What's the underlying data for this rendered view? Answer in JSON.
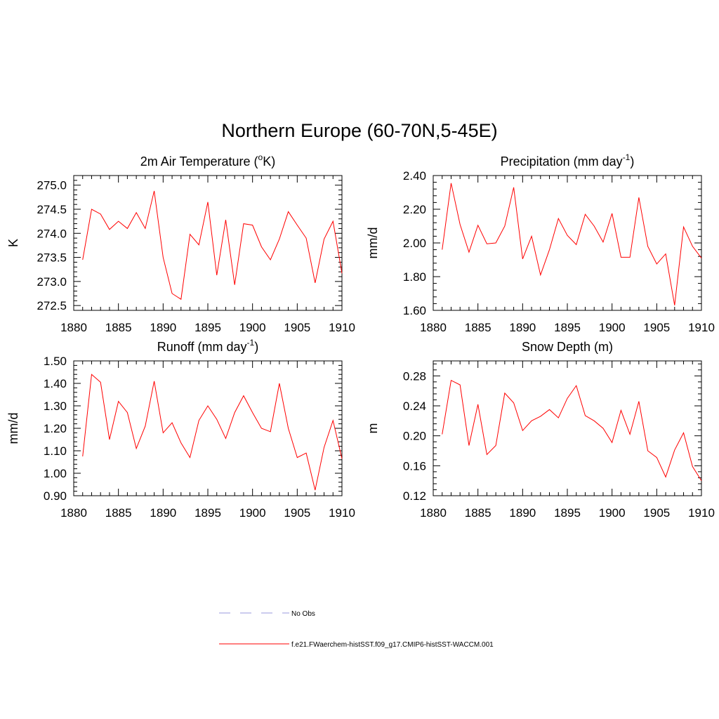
{
  "figure_title": "Northern Europe (60-70N,5-45E)",
  "legend": [
    {
      "label": "No Obs",
      "color": "#9999dd",
      "style": "dashed"
    },
    {
      "label": "f.e21.FWaerchem-histSST.f09_g17.CMIP6-histSST-WACCM.001",
      "color": "#ff0000",
      "style": "solid"
    }
  ],
  "chart_data": [
    {
      "type": "line",
      "title": "2m Air Temperature (",
      "title_sup": "o",
      "title_after": "K)",
      "xlabel": "",
      "ylabel": "K",
      "xlim": [
        1880,
        1910
      ],
      "ylim": [
        272.4,
        275.2
      ],
      "xticks": [
        1880,
        1885,
        1890,
        1895,
        1900,
        1905,
        1910
      ],
      "xtick_labels": [
        "1880",
        "1885",
        "1890",
        "1895",
        "1900",
        "1905",
        "1910"
      ],
      "yticks": [
        272.5,
        273.0,
        273.5,
        274.0,
        274.5,
        275.0
      ],
      "ytick_labels": [
        "272.5",
        "273.0",
        "273.5",
        "274.0",
        "274.5",
        "275.0"
      ],
      "grid": false,
      "series": [
        {
          "name": "f.e21.FWaerchem-histSST.f09_g17.CMIP6-histSST-WACCM.001",
          "color": "#ff0000",
          "x": [
            1881,
            1882,
            1883,
            1884,
            1885,
            1886,
            1887,
            1888,
            1889,
            1890,
            1891,
            1892,
            1893,
            1894,
            1895,
            1896,
            1897,
            1898,
            1899,
            1900,
            1901,
            1902,
            1903,
            1904,
            1905,
            1906,
            1907,
            1908,
            1909,
            1910
          ],
          "y": [
            273.45,
            274.5,
            274.4,
            274.08,
            274.25,
            274.1,
            274.43,
            274.1,
            274.88,
            273.5,
            272.75,
            272.63,
            273.98,
            273.76,
            274.65,
            273.13,
            274.28,
            272.93,
            274.2,
            274.17,
            273.72,
            273.45,
            273.88,
            274.45,
            274.17,
            273.9,
            272.97,
            273.88,
            274.25,
            273.17
          ]
        }
      ]
    },
    {
      "type": "line",
      "title": "Precipitation (mm day",
      "title_sup": "-1",
      "title_after": ")",
      "xlabel": "",
      "ylabel": "mm/d",
      "xlim": [
        1880,
        1910
      ],
      "ylim": [
        1.6,
        2.4
      ],
      "xticks": [
        1880,
        1885,
        1890,
        1895,
        1900,
        1905,
        1910
      ],
      "xtick_labels": [
        "1880",
        "1885",
        "1890",
        "1895",
        "1900",
        "1905",
        "1910"
      ],
      "yticks": [
        1.6,
        1.8,
        2.0,
        2.2,
        2.4
      ],
      "ytick_labels": [
        "1.60",
        "1.80",
        "2.00",
        "2.20",
        "2.40"
      ],
      "grid": false,
      "series": [
        {
          "name": "f.e21.FWaerchem-histSST.f09_g17.CMIP6-histSST-WACCM.001",
          "color": "#ff0000",
          "x": [
            1881,
            1882,
            1883,
            1884,
            1885,
            1886,
            1887,
            1888,
            1889,
            1890,
            1891,
            1892,
            1893,
            1894,
            1895,
            1896,
            1897,
            1898,
            1899,
            1900,
            1901,
            1902,
            1903,
            1904,
            1905,
            1906,
            1907,
            1908,
            1909,
            1910
          ],
          "y": [
            1.96,
            2.355,
            2.11,
            1.945,
            2.105,
            1.995,
            2.0,
            2.1,
            2.33,
            1.905,
            2.04,
            1.81,
            1.96,
            2.145,
            2.045,
            1.99,
            2.17,
            2.1,
            2.005,
            2.175,
            1.915,
            1.915,
            2.27,
            1.98,
            1.875,
            1.935,
            1.63,
            2.095,
            1.98,
            1.91
          ]
        }
      ]
    },
    {
      "type": "line",
      "title": "Runoff (mm day",
      "title_sup": "-1",
      "title_after": ")",
      "xlabel": "",
      "ylabel": "mm/d",
      "xlim": [
        1880,
        1910
      ],
      "ylim": [
        0.9,
        1.5
      ],
      "xticks": [
        1880,
        1885,
        1890,
        1895,
        1900,
        1905,
        1910
      ],
      "xtick_labels": [
        "1880",
        "1885",
        "1890",
        "1895",
        "1900",
        "1905",
        "1910"
      ],
      "yticks": [
        0.9,
        1.0,
        1.1,
        1.2,
        1.3,
        1.4,
        1.5
      ],
      "ytick_labels": [
        "0.90",
        "1.00",
        "1.10",
        "1.20",
        "1.30",
        "1.40",
        "1.50"
      ],
      "grid": false,
      "series": [
        {
          "name": "f.e21.FWaerchem-histSST.f09_g17.CMIP6-histSST-WACCM.001",
          "color": "#ff0000",
          "x": [
            1881,
            1882,
            1883,
            1884,
            1885,
            1886,
            1887,
            1888,
            1889,
            1890,
            1891,
            1892,
            1893,
            1894,
            1895,
            1896,
            1897,
            1898,
            1899,
            1900,
            1901,
            1902,
            1903,
            1904,
            1905,
            1906,
            1907,
            1908,
            1909,
            1910
          ],
          "y": [
            1.075,
            1.44,
            1.405,
            1.15,
            1.32,
            1.27,
            1.11,
            1.21,
            1.41,
            1.18,
            1.225,
            1.135,
            1.07,
            1.235,
            1.3,
            1.24,
            1.155,
            1.27,
            1.345,
            1.27,
            1.2,
            1.185,
            1.4,
            1.2,
            1.07,
            1.09,
            0.925,
            1.115,
            1.235,
            1.065
          ]
        }
      ]
    },
    {
      "type": "line",
      "title": "Snow Depth (m)",
      "title_sup": "",
      "title_after": "",
      "xlabel": "",
      "ylabel": "m",
      "xlim": [
        1880,
        1910
      ],
      "ylim": [
        0.12,
        0.3
      ],
      "xticks": [
        1880,
        1885,
        1890,
        1895,
        1900,
        1905,
        1910
      ],
      "xtick_labels": [
        "1880",
        "1885",
        "1890",
        "1895",
        "1900",
        "1905",
        "1910"
      ],
      "yticks": [
        0.12,
        0.16,
        0.2,
        0.24,
        0.28
      ],
      "ytick_labels": [
        "0.12",
        "0.16",
        "0.20",
        "0.24",
        "0.28"
      ],
      "grid": false,
      "series": [
        {
          "name": "f.e21.FWaerchem-histSST.f09_g17.CMIP6-histSST-WACCM.001",
          "color": "#ff0000",
          "x": [
            1881,
            1882,
            1883,
            1884,
            1885,
            1886,
            1887,
            1888,
            1889,
            1890,
            1891,
            1892,
            1893,
            1894,
            1895,
            1896,
            1897,
            1898,
            1899,
            1900,
            1901,
            1902,
            1903,
            1904,
            1905,
            1906,
            1907,
            1908,
            1909,
            1910
          ],
          "y": [
            0.202,
            0.274,
            0.268,
            0.187,
            0.242,
            0.175,
            0.187,
            0.257,
            0.244,
            0.207,
            0.22,
            0.226,
            0.235,
            0.224,
            0.25,
            0.267,
            0.227,
            0.22,
            0.21,
            0.191,
            0.234,
            0.202,
            0.246,
            0.18,
            0.171,
            0.145,
            0.181,
            0.204,
            0.159,
            0.14
          ]
        }
      ]
    }
  ]
}
